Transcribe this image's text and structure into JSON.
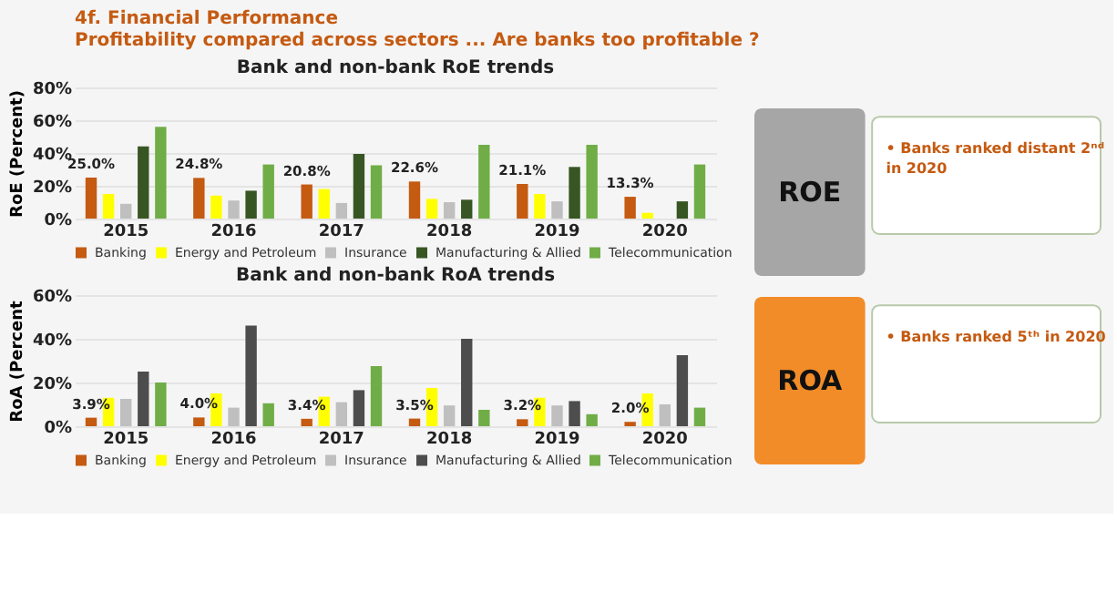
{
  "chart_data": [
    {
      "type": "bar",
      "title": "Bank and non-bank RoE trends",
      "ylabel": "RoE (Percent)",
      "categories": [
        "2015",
        "2016",
        "2017",
        "2018",
        "2019",
        "2020"
      ],
      "series": [
        {
          "name": "Banking",
          "color": "#c55a11",
          "values": [
            25.0,
            24.8,
            20.8,
            22.6,
            21.1,
            13.3
          ],
          "value_labels": [
            "25.0%",
            "24.8%",
            "20.8%",
            "22.6%",
            "21.1%",
            "13.3%"
          ]
        },
        {
          "name": "Energy and Petroleum",
          "color": "#ffff00",
          "values": [
            15,
            14,
            18,
            12,
            15,
            3.5
          ]
        },
        {
          "name": "Insurance",
          "color": "#bfbfbf",
          "values": [
            9,
            11,
            9.5,
            10,
            10.5,
            null
          ]
        },
        {
          "name": "Manufacturing & Allied",
          "color": "#375623",
          "values": [
            44,
            17,
            39.5,
            11.5,
            31.5,
            10.5
          ]
        },
        {
          "name": "Telecommunication",
          "color": "#70ad47",
          "values": [
            56,
            33,
            32.5,
            45,
            45,
            33
          ]
        }
      ],
      "ylim": [
        0,
        80
      ],
      "yticks": [
        {
          "value": 0,
          "label": "0%"
        },
        {
          "value": 20,
          "label": "20%"
        },
        {
          "value": 40,
          "label": "40%"
        },
        {
          "value": 60,
          "label": "60%"
        },
        {
          "value": 80,
          "label": "80%"
        }
      ],
      "grid": "y",
      "legend": "bottom"
    },
    {
      "type": "bar",
      "title": "Bank and non-bank RoA trends",
      "ylabel": "RoA (Percent",
      "categories": [
        "2015",
        "2016",
        "2017",
        "2018",
        "2019",
        "2020"
      ],
      "series": [
        {
          "name": "Banking",
          "color": "#c55a11",
          "values": [
            3.9,
            4.0,
            3.4,
            3.5,
            3.2,
            2.0
          ],
          "value_labels": [
            "3.9%",
            "4.0%",
            "3.4%",
            "3.5%",
            "3.2%",
            "2.0%"
          ]
        },
        {
          "name": "Energy and Petroleum",
          "color": "#ffff00",
          "values": [
            13,
            15,
            13.5,
            17.5,
            13,
            15
          ]
        },
        {
          "name": "Insurance",
          "color": "#bfbfbf",
          "values": [
            12.5,
            8.5,
            11,
            9.5,
            9.5,
            10
          ]
        },
        {
          "name": "Manufacturing & Allied",
          "color": "#4d4d4d",
          "values": [
            25,
            46,
            16.5,
            40,
            11.5,
            32.5
          ]
        },
        {
          "name": "Telecommunication",
          "color": "#70ad47",
          "values": [
            20,
            10.5,
            27.5,
            7.5,
            5.5,
            8.5
          ]
        }
      ],
      "ylim": [
        0,
        60
      ],
      "yticks": [
        {
          "value": 0,
          "label": "0%"
        },
        {
          "value": 20,
          "label": "20%"
        },
        {
          "value": 40,
          "label": "40%"
        },
        {
          "value": 60,
          "label": "60%"
        }
      ],
      "grid": "y",
      "legend": "bottom"
    },
    {
      "type": "other",
      "title": "4f. Financial Performance",
      "subtitle": "Profitability compared across sectors ... Are banks too profitable ?",
      "annotations": [
        "ROE",
        "• Banks ranked distant 2ⁿᵈ in 2020",
        "ROA",
        "• Banks ranked 5ᵗʰ in 2020"
      ],
      "colors": [
        "#a6a6a6",
        "#f28c28"
      ]
    }
  ]
}
